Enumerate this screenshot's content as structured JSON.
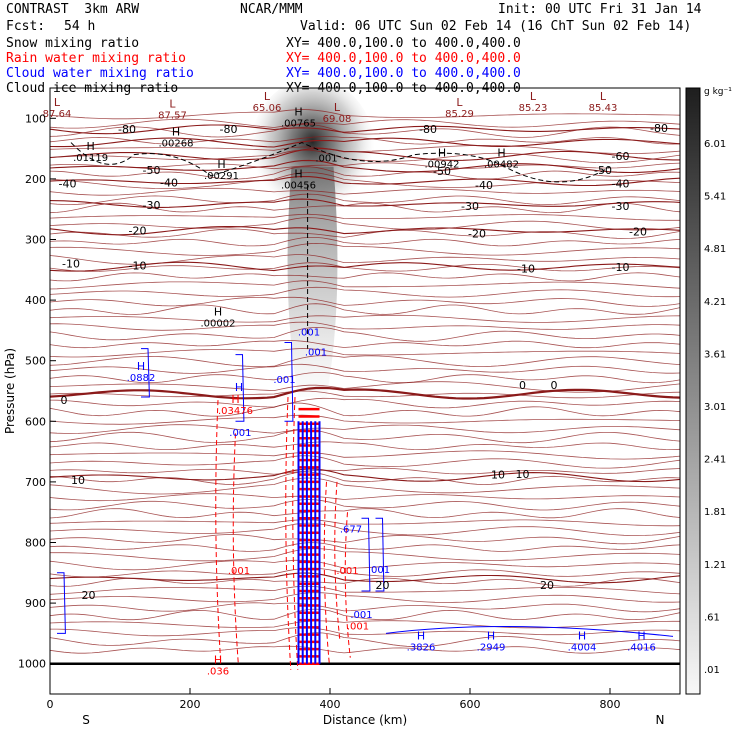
{
  "header": {
    "model": "CONTRAST  3km ARW",
    "org": "NCAR/MMM",
    "init": "Init: 00 UTC Fri 31 Jan 14",
    "fcst_label": "Fcst:",
    "fcst_value": "54 h",
    "valid": "Valid: 06 UTC Sun 02 Feb 14 (16 ChT Sun 02 Feb 14)"
  },
  "fields": [
    {
      "name": "Snow mixing ratio",
      "xy": "XY= 400.0,100.0 to 400.0,400.0",
      "color": "#000000"
    },
    {
      "name": "Rain water mixing ratio",
      "xy": "XY= 400.0,100.0 to 400.0,400.0",
      "color": "#ff0000"
    },
    {
      "name": "Cloud water mixing ratio",
      "xy": "XY= 400.0,100.0 to 400.0,400.0",
      "color": "#0000ff"
    },
    {
      "name": "Cloud ice mixing ratio",
      "xy": "XY= 400.0,100.0 to 400.0,400.0",
      "color": "#000000"
    }
  ],
  "chart_data": {
    "type": "contour",
    "xlabel": "Distance (km)",
    "ylabel": "Pressure (hPa)",
    "x_ticks": [
      0,
      200,
      400,
      600,
      800
    ],
    "y_ticks": [
      100,
      200,
      300,
      400,
      500,
      600,
      700,
      800,
      900,
      1000
    ],
    "xlim": [
      0,
      900
    ],
    "ylim": [
      1050,
      50
    ],
    "x_end_labels": {
      "left": "S",
      "right": "N"
    },
    "colorbar": {
      "unit": "g kg⁻¹",
      "ticks": [
        "6.01",
        "5.41",
        "4.81",
        "4.21",
        "3.61",
        "3.01",
        "2.41",
        "1.81",
        "1.21",
        ".61",
        ".01"
      ]
    },
    "temperature_contours": {
      "color": "#8b1a1a",
      "interval": 10,
      "levels": [
        {
          "label": "-80",
          "p": 118
        },
        {
          "label": "-70",
          "p": 140
        },
        {
          "label": "-60",
          "p": 162
        },
        {
          "label": "-50",
          "p": 182
        },
        {
          "label": "-40",
          "p": 205
        },
        {
          "label": "-30",
          "p": 242
        },
        {
          "label": "-20",
          "p": 285
        },
        {
          "label": "-10",
          "p": 345
        },
        {
          "label": "0",
          "p": 555
        },
        {
          "label": "10",
          "p": 692
        },
        {
          "label": "20",
          "p": 860
        }
      ],
      "labels": [
        {
          "text": "-80",
          "x": 110,
          "p": 118
        },
        {
          "text": "-80",
          "x": 255,
          "p": 118
        },
        {
          "text": "-80",
          "x": 540,
          "p": 118
        },
        {
          "text": "-80",
          "x": 870,
          "p": 116
        },
        {
          "text": "-60",
          "x": 815,
          "p": 162
        },
        {
          "text": "-50",
          "x": 145,
          "p": 185
        },
        {
          "text": "-50",
          "x": 560,
          "p": 187
        },
        {
          "text": "-50",
          "x": 790,
          "p": 185
        },
        {
          "text": "-40",
          "x": 25,
          "p": 208
        },
        {
          "text": "-40",
          "x": 170,
          "p": 206
        },
        {
          "text": "-40",
          "x": 620,
          "p": 210
        },
        {
          "text": "-40",
          "x": 815,
          "p": 208
        },
        {
          "text": "-30",
          "x": 145,
          "p": 243
        },
        {
          "text": "-30",
          "x": 600,
          "p": 245
        },
        {
          "text": "-30",
          "x": 815,
          "p": 245
        },
        {
          "text": "-20",
          "x": 125,
          "p": 285
        },
        {
          "text": "-20",
          "x": 610,
          "p": 290
        },
        {
          "text": "-20",
          "x": 840,
          "p": 287
        },
        {
          "text": "-10",
          "x": 30,
          "p": 340
        },
        {
          "text": "-10",
          "x": 125,
          "p": 343
        },
        {
          "text": "-10",
          "x": 680,
          "p": 348
        },
        {
          "text": "-10",
          "x": 815,
          "p": 345
        },
        {
          "text": "0",
          "x": 20,
          "p": 565
        },
        {
          "text": "0",
          "x": 675,
          "p": 540
        },
        {
          "text": "0",
          "x": 720,
          "p": 540
        },
        {
          "text": "10",
          "x": 40,
          "p": 697
        },
        {
          "text": "10",
          "x": 640,
          "p": 688
        },
        {
          "text": "10",
          "x": 675,
          "p": 687
        },
        {
          "text": "20",
          "x": 55,
          "p": 887
        },
        {
          "text": "20",
          "x": 475,
          "p": 870
        },
        {
          "text": "20",
          "x": 710,
          "p": 870
        }
      ]
    },
    "extrema": [
      {
        "type": "L",
        "x": 10,
        "p": 80,
        "value": "87.64",
        "color": "#8b1a1a"
      },
      {
        "type": "L",
        "x": 175,
        "p": 82,
        "value": "87.57",
        "color": "#8b1a1a"
      },
      {
        "type": "L",
        "x": 310,
        "p": 70,
        "value": "65.06",
        "color": "#8b1a1a"
      },
      {
        "type": "L",
        "x": 410,
        "p": 88,
        "value": "69.08",
        "color": "#8b1a1a"
      },
      {
        "type": "L",
        "x": 585,
        "p": 80,
        "value": "85.29",
        "color": "#8b1a1a"
      },
      {
        "type": "L",
        "x": 690,
        "p": 70,
        "value": "85.23",
        "color": "#8b1a1a"
      },
      {
        "type": "L",
        "x": 790,
        "p": 70,
        "value": "85.43",
        "color": "#8b1a1a"
      },
      {
        "type": "H",
        "x": 355,
        "p": 95,
        "value": ".00765",
        "color": "#000000"
      },
      {
        "type": "H",
        "x": 180,
        "p": 128,
        "value": ".00268",
        "color": "#000000"
      },
      {
        "type": "H",
        "x": 58,
        "p": 152,
        "value": ".01119",
        "color": "#000000"
      },
      {
        "type": "H",
        "x": 245,
        "p": 182,
        "value": ".00291",
        "color": "#000000"
      },
      {
        "type": "H",
        "x": 355,
        "p": 198,
        "value": ".00456",
        "color": "#000000"
      },
      {
        "type": "H",
        "x": 560,
        "p": 163,
        "value": ".00942",
        "color": "#000000"
      },
      {
        "type": "H",
        "x": 645,
        "p": 163,
        "value": ".00482",
        "color": "#000000"
      },
      {
        "type": "H",
        "x": 240,
        "p": 425,
        "value": ".00002",
        "color": "#000000"
      },
      {
        "type": "H",
        "x": 130,
        "p": 515,
        "value": ".0882",
        "color": "#0000ff"
      },
      {
        "type": "H",
        "x": 265,
        "p": 570,
        "value": ".03476",
        "color": "#ff0000"
      },
      {
        "type": "H",
        "x": 270,
        "p": 550,
        "value": "",
        "color": "#0000ff"
      },
      {
        "type": "H",
        "x": 240,
        "p": 1000,
        "value": ".036",
        "color": "#ff0000"
      },
      {
        "type": "H",
        "x": 530,
        "p": 960,
        "value": ".3826",
        "color": "#0000ff"
      },
      {
        "type": "H",
        "x": 630,
        "p": 960,
        "value": ".2949",
        "color": "#0000ff"
      },
      {
        "type": "H",
        "x": 760,
        "p": 960,
        "value": ".4004",
        "color": "#0000ff"
      },
      {
        "type": "H",
        "x": 845,
        "p": 960,
        "value": ".4016",
        "color": "#0000ff"
      }
    ],
    "contour_value_labels": [
      {
        "text": ".001",
        "x": 395,
        "p": 165,
        "color": "#000000"
      },
      {
        "text": ".001",
        "x": 370,
        "p": 452,
        "color": "#0000ff"
      },
      {
        "text": ".001",
        "x": 380,
        "p": 485,
        "color": "#0000ff"
      },
      {
        "text": ".001",
        "x": 335,
        "p": 530,
        "color": "#0000ff"
      },
      {
        "text": ".001",
        "x": 272,
        "p": 618,
        "color": "#0000ff"
      },
      {
        "text": ".001",
        "x": 270,
        "p": 845,
        "color": "#ff0000"
      },
      {
        "text": ".001",
        "x": 425,
        "p": 845,
        "color": "#ff0000"
      },
      {
        "text": ".001",
        "x": 470,
        "p": 844,
        "color": "#0000ff"
      },
      {
        "text": ".001",
        "x": 445,
        "p": 918,
        "color": "#0000ff"
      },
      {
        "text": ".001",
        "x": 440,
        "p": 937,
        "color": "#ff0000"
      },
      {
        "text": ".677",
        "x": 430,
        "p": 777,
        "color": "#0000ff"
      }
    ],
    "series": [
      {
        "name": "Snow mixing ratio",
        "color": "#000000",
        "style": "dashed"
      },
      {
        "name": "Rain water mixing ratio",
        "color": "#ff0000",
        "style": "dashed"
      },
      {
        "name": "Cloud water mixing ratio",
        "color": "#0000ff",
        "style": "solid"
      },
      {
        "name": "Cloud ice mixing ratio",
        "color": "#808080",
        "style": "shaded"
      }
    ]
  }
}
